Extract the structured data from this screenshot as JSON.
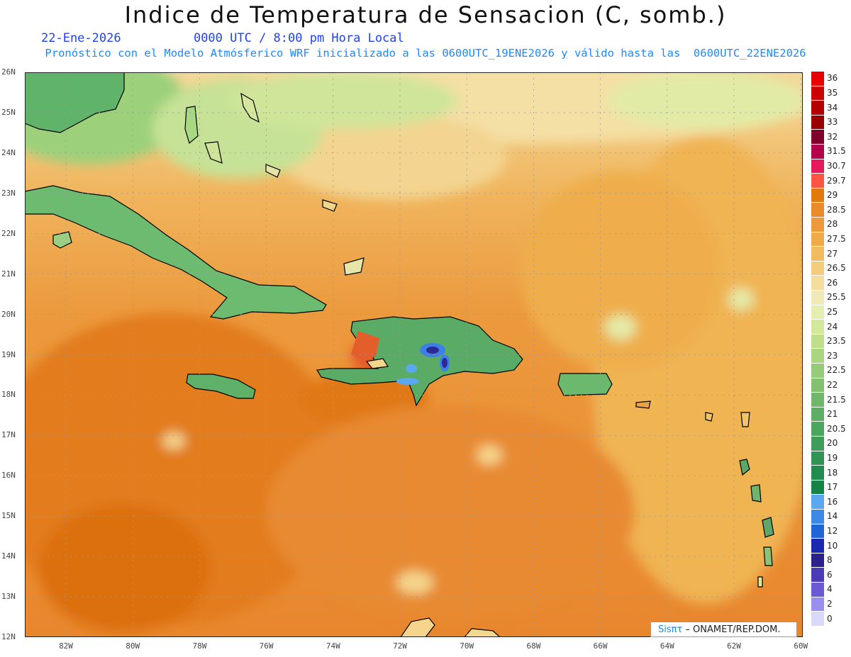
{
  "title": "Indice de Temperatura de Sensacion (C, somb.)",
  "date": "22-Ene-2026",
  "time": "0000 UTC / 8:00 pm Hora Local",
  "model_line": "Pronóstico con el Modelo Atmósferico WRF inicializado a las 0600UTC_19ENE2026 y válido hasta las  0600UTC_22ENE2026",
  "credit_logo": "Sisπτ",
  "credit_text": " –  ONAMET/REP.DOM.",
  "lat_labels": [
    "26N",
    "25N",
    "24N",
    "23N",
    "22N",
    "21N",
    "20N",
    "19N",
    "18N",
    "17N",
    "16N",
    "15N",
    "14N",
    "13N",
    "12N"
  ],
  "lon_labels": [
    "82W",
    "80W",
    "78W",
    "76W",
    "74W",
    "72W",
    "70W",
    "68W",
    "66W",
    "64W",
    "62W",
    "60W"
  ],
  "legend": [
    {
      "label": "36",
      "color": "#e60000"
    },
    {
      "label": "35",
      "color": "#cc0000"
    },
    {
      "label": "34",
      "color": "#b30000"
    },
    {
      "label": "33",
      "color": "#990000"
    },
    {
      "label": "32",
      "color": "#80002a"
    },
    {
      "label": "31.5",
      "color": "#b3004d"
    },
    {
      "label": "30.7",
      "color": "#e6195c"
    },
    {
      "label": "29.7",
      "color": "#ff5544"
    },
    {
      "label": "29",
      "color": "#e07a0a"
    },
    {
      "label": "28.5",
      "color": "#eb8a2a"
    },
    {
      "label": "28",
      "color": "#ee9a3c"
    },
    {
      "label": "27.5",
      "color": "#f0aa48"
    },
    {
      "label": "27",
      "color": "#f2bc5e"
    },
    {
      "label": "26.5",
      "color": "#f3cd7a"
    },
    {
      "label": "26",
      "color": "#f5dd9c"
    },
    {
      "label": "25.5",
      "color": "#f3e8b8"
    },
    {
      "label": "25",
      "color": "#e4eeb0"
    },
    {
      "label": "24",
      "color": "#d4e89a"
    },
    {
      "label": "23.5",
      "color": "#c0df8a"
    },
    {
      "label": "23",
      "color": "#aad680"
    },
    {
      "label": "22.5",
      "color": "#96cc78"
    },
    {
      "label": "22",
      "color": "#82c170"
    },
    {
      "label": "21.5",
      "color": "#6fb769"
    },
    {
      "label": "21",
      "color": "#5dae63"
    },
    {
      "label": "20.5",
      "color": "#4ca65e"
    },
    {
      "label": "20",
      "color": "#3e9d59"
    },
    {
      "label": "19",
      "color": "#309554"
    },
    {
      "label": "18",
      "color": "#208c4e"
    },
    {
      "label": "17",
      "color": "#138346"
    },
    {
      "label": "16",
      "color": "#5aa8f0"
    },
    {
      "label": "14",
      "color": "#3d8ae6"
    },
    {
      "label": "12",
      "color": "#1f66d6"
    },
    {
      "label": "10",
      "color": "#1a2ab0"
    },
    {
      "label": "8",
      "color": "#2c1f8e"
    },
    {
      "label": "6",
      "color": "#4a3cb8"
    },
    {
      "label": "4",
      "color": "#6a5ad6"
    },
    {
      "label": "2",
      "color": "#9a8ff0"
    },
    {
      "label": "0",
      "color": "#dcd8fa"
    }
  ],
  "colors": {
    "sea_warm": "#e8862e",
    "sea_hot": "#dd7412",
    "sea_mid": "#eea04a",
    "sea_cool": "#f2c06a",
    "north_pale": "#f4e0a8",
    "land_green": "#4ea862",
    "land_dark": "#2d8f50",
    "cold_blue": "#3d7fe6",
    "cold_navy": "#2a2a90",
    "hot_red": "#e55b2c"
  }
}
